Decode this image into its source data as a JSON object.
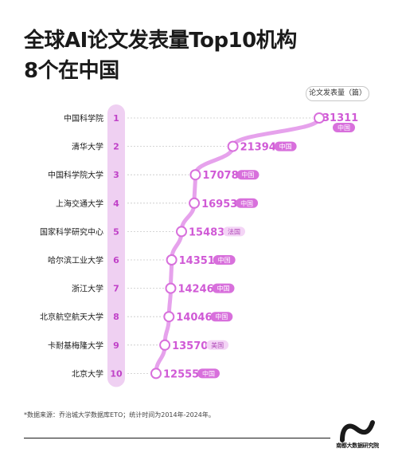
{
  "title": "全球AI论文发表量Top10机构 8个在中国",
  "unit_label": "论文发表量（篇）",
  "footnote": "*数据来源：乔治城大学数据库ETO；统计时间为2014年-2024年。",
  "brand_name": "南都大数据研究院",
  "colors": {
    "accent": "#d870dc",
    "rank_bar": "#efd0f2",
    "rank_text": "#c042c8",
    "curve": "#e6a2ec",
    "dot_fill": "#ffffff",
    "value_text": "#d05ad6",
    "badge_fill": "#d870dc",
    "badge_alt_fill": "#f4d5f6",
    "badge_alt_text": "#b04ab8",
    "guide": "#c8c8c8"
  },
  "chart_data": {
    "type": "line",
    "title": "全球AI论文发表量Top10机构 8个在中国",
    "ylabel": "论文发表量（篇）",
    "categories": [
      "中国科学院",
      "清华大学",
      "中国科学院大学",
      "上海交通大学",
      "国家科学研究中心",
      "哈尔滨工业大学",
      "浙江大学",
      "北京航空航天大学",
      "卡耐基梅隆大学",
      "北京大学"
    ],
    "ranks": [
      "1",
      "2",
      "3",
      "4",
      "5",
      "6",
      "7",
      "8",
      "9",
      "10"
    ],
    "values": [
      31311,
      21394,
      17078,
      16953,
      15483,
      14351,
      14246,
      14046,
      13570,
      12555
    ],
    "value_labels": [
      "31311",
      "21394",
      "17078",
      "16953",
      "15483",
      "14351",
      "14246",
      "14046",
      "13570",
      "12555"
    ],
    "countries": [
      "中国",
      "中国",
      "中国",
      "中国",
      "法国",
      "中国",
      "中国",
      "中国",
      "美国",
      "中国"
    ],
    "xlim": [
      12555,
      31311
    ],
    "grid": false,
    "legend": "none"
  }
}
